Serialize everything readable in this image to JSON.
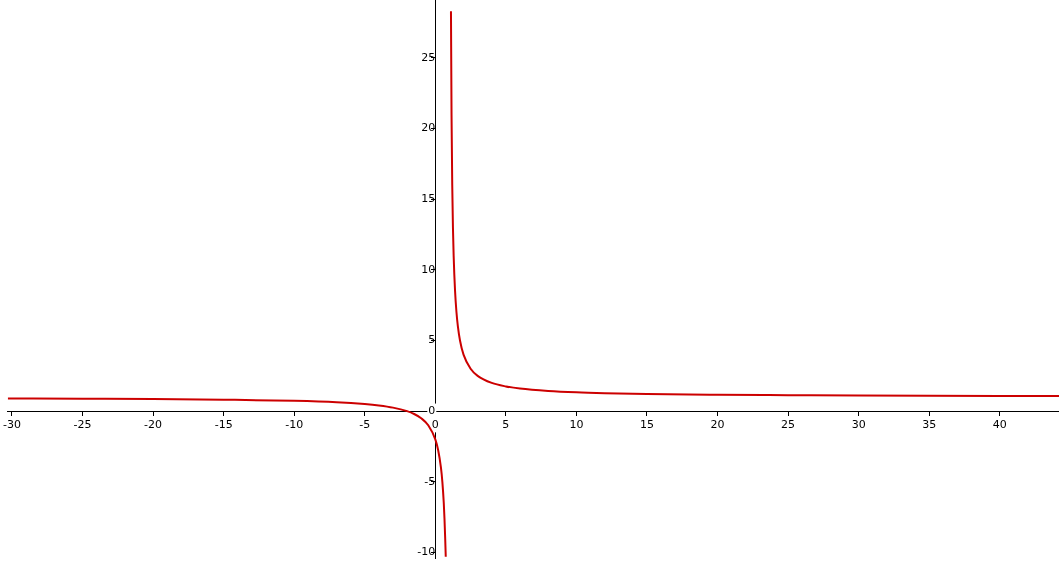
{
  "chart_data": {
    "type": "line",
    "x": [
      -30.3,
      -25,
      -20,
      -15,
      -10,
      -7,
      -5,
      -4,
      -3,
      -2,
      -1.5,
      -1,
      -0.5,
      0,
      0.2,
      0.4,
      0.5,
      0.6,
      0.65,
      0.7,
      0.74,
      0.9,
      1.11,
      1.15,
      1.2,
      1.25,
      1.3,
      1.4,
      1.5,
      1.6,
      1.75,
      2,
      2.5,
      3,
      4,
      5,
      6,
      8,
      10,
      12,
      15,
      20,
      25,
      30,
      35,
      40,
      44.2
    ],
    "series": [
      {
        "color": "#cc0000",
        "values": [
          0.9,
          0.88,
          0.86,
          0.81,
          0.73,
          0.63,
          0.5,
          0.4,
          0.25,
          0,
          -0.2,
          -0.5,
          -1,
          -2,
          -2.75,
          -4,
          -5,
          -6.5,
          -7.6,
          -9,
          -10.3,
          null,
          28.3,
          21,
          16,
          13,
          11,
          8.5,
          7,
          6,
          5,
          4,
          3,
          2.5,
          2,
          1.75,
          1.6,
          1.43,
          1.33,
          1.27,
          1.21,
          1.16,
          1.13,
          1.1,
          1.09,
          1.08,
          1.07
        ]
      }
    ],
    "xlim": [
      -30.3,
      44.2
    ],
    "ylim": [
      -10.4,
      29.1
    ],
    "xticks": [
      -30,
      -25,
      -20,
      -15,
      -10,
      -5,
      0,
      5,
      10,
      15,
      20,
      25,
      30,
      35,
      40
    ],
    "yticks": [
      -10,
      -5,
      0,
      5,
      10,
      15,
      20,
      25
    ],
    "grid": false,
    "legend": false,
    "marker": "none",
    "line_style": "solid"
  }
}
